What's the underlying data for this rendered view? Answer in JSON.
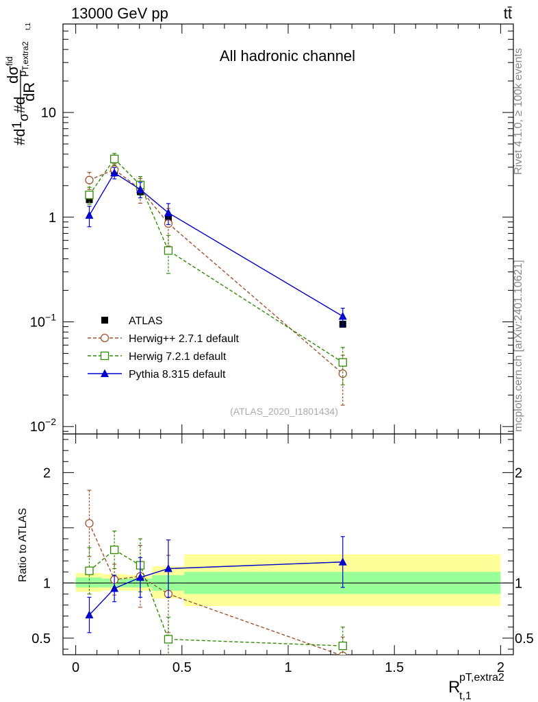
{
  "header": {
    "left": "13000 GeV pp",
    "right": "tt̄"
  },
  "side_texts": {
    "rivet": "Rivet 4.1.0, ≥ 100k events",
    "mcplots": "mcplots.cern.ch [arXiv:2401.10621]"
  },
  "chart_data": {
    "type": "line",
    "title": "All hadronic channel",
    "analysis_id": "(ATLAS_2020_I1801434)",
    "ylabel_main": "#d1/σ#d dσfid/d p_T,extra2 / dR_t,1",
    "xlabel": "R_t,1^pT,extra2",
    "xlim": [
      -0.06,
      2.06
    ],
    "ylim_main": [
      0.0085,
      70
    ],
    "ylim_ratio": [
      0.35,
      2.35
    ],
    "x_ticks": [
      "0",
      "0.5",
      "1",
      "1.5",
      "2"
    ],
    "x_tick_values": [
      0,
      0.5,
      1,
      1.5,
      2
    ],
    "y_ticks_main": [
      "10",
      "1",
      "10⁻¹",
      "10⁻²"
    ],
    "y_tick_values_main": [
      10,
      1,
      0.1,
      0.01
    ],
    "ratio_ylabel": "Ratio to ATLAS",
    "y_ticks_ratio": [
      "2",
      "1",
      "0.5"
    ],
    "y_tick_values_ratio": [
      2,
      1,
      0.5
    ],
    "x": [
      0.064,
      0.182,
      0.304,
      0.436,
      1.257
    ],
    "bins": [
      [
        0.0,
        0.123
      ],
      [
        0.123,
        0.245
      ],
      [
        0.245,
        0.36
      ],
      [
        0.36,
        0.51
      ],
      [
        0.51,
        2.0
      ]
    ],
    "data": {
      "name": "ATLAS",
      "color": "#000000",
      "values": [
        1.47,
        2.78,
        1.75,
        0.97,
        0.095
      ],
      "band_stat": [
        [
          0.96,
          1.05
        ],
        [
          0.96,
          1.04
        ],
        [
          0.96,
          1.04
        ],
        [
          0.93,
          1.07
        ],
        [
          0.9,
          1.1
        ]
      ],
      "band_total": [
        [
          0.92,
          1.09
        ],
        [
          0.93,
          1.08
        ],
        [
          0.93,
          1.07
        ],
        [
          0.86,
          1.15
        ],
        [
          0.79,
          1.26
        ]
      ]
    },
    "series": [
      {
        "name": "Herwig++ 2.7.1 default",
        "color": "#a0522d",
        "marker": "open-circle",
        "dashed": true,
        "values": [
          2.26,
          2.85,
          1.85,
          0.87,
          0.032
        ],
        "errors": [
          0.42,
          0.39,
          0.49,
          0.34,
          0.016
        ],
        "ratio": [
          1.54,
          1.03,
          1.06,
          0.9,
          0.34
        ],
        "ratio_err": [
          0.3,
          0.14,
          0.28,
          0.35,
          0.17
        ]
      },
      {
        "name": "Herwig 7.2.1 default",
        "color": "#2e8b00",
        "marker": "open-square",
        "dashed": true,
        "values": [
          1.63,
          3.6,
          2.03,
          0.48,
          0.041
        ],
        "errors": [
          0.3,
          0.46,
          0.41,
          0.19,
          0.016
        ],
        "ratio": [
          1.11,
          1.3,
          1.16,
          0.49,
          0.43
        ],
        "ratio_err": [
          0.21,
          0.17,
          0.24,
          0.2,
          0.17
        ]
      },
      {
        "name": "Pythia 8.315 default",
        "color": "#0000cc",
        "marker": "filled-triangle",
        "dashed": false,
        "values": [
          1.04,
          2.65,
          1.84,
          1.1,
          0.113
        ],
        "errors": [
          0.23,
          0.33,
          0.31,
          0.25,
          0.022
        ],
        "ratio": [
          0.71,
          0.95,
          1.05,
          1.13,
          1.19
        ],
        "ratio_err": [
          0.16,
          0.12,
          0.18,
          0.26,
          0.23
        ]
      }
    ]
  }
}
